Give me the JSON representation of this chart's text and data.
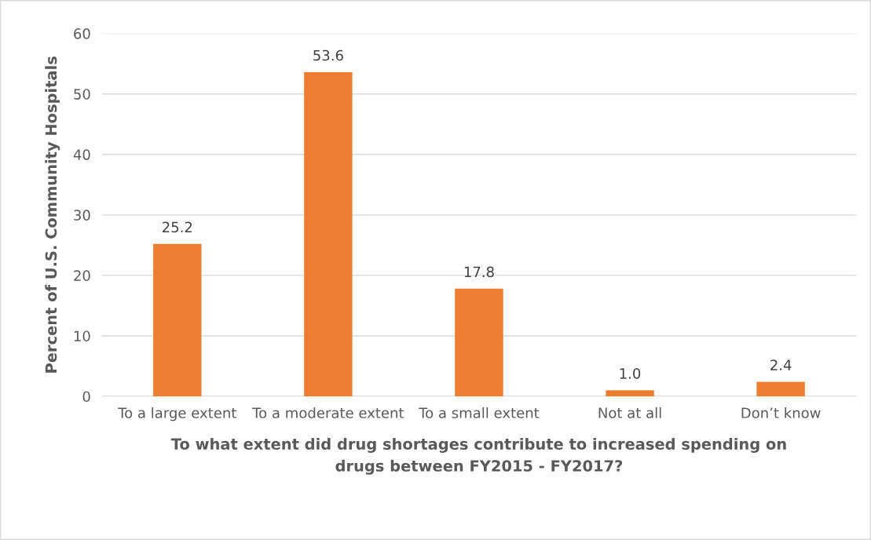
{
  "chart_data": {
    "type": "bar",
    "ylabel": "Percent of U.S. Community Hospitals",
    "xlabel": "To what extent did drug shortages contribute to increased spending on drugs between FY2015 - FY2017?",
    "categories": [
      "To a large extent",
      "To a moderate extent",
      "To a small extent",
      "Not at all",
      "Don’t know"
    ],
    "values": [
      25.2,
      53.6,
      17.8,
      1.0,
      2.4
    ],
    "value_labels": [
      "25.2",
      "53.6",
      "17.8",
      "1.0",
      "2.4"
    ],
    "color": "#ed7d31",
    "ylim": [
      0,
      60
    ],
    "yticks": [
      0,
      10,
      20,
      30,
      40,
      50,
      60
    ],
    "grid": "y",
    "legend": false
  }
}
